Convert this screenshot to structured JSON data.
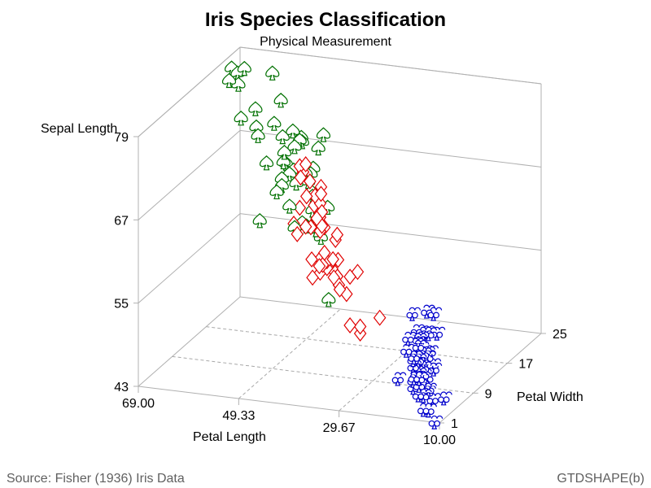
{
  "chart_data": {
    "type": "scatter3d",
    "title": "Iris Species Classification",
    "subtitle": "Physical Measurement",
    "x_axis": {
      "label": "Petal Length",
      "ticks": [
        "69.00",
        "49.33",
        "29.67",
        "10.00"
      ],
      "range": [
        10,
        69
      ]
    },
    "y_axis": {
      "label": "Petal Width",
      "ticks": [
        "1",
        "9",
        "17",
        "25"
      ],
      "range": [
        1,
        25
      ]
    },
    "z_axis": {
      "label": "Sepal Length",
      "ticks": [
        "43",
        "55",
        "67",
        "79"
      ],
      "range": [
        43,
        79
      ]
    },
    "footnote_left": "Source: Fisher (1936) Iris Data",
    "footnote_right": "GTDSHAPE(b)",
    "series": [
      {
        "symbol": "club",
        "color": "#0000cc",
        "points": [
          [
            14,
            2,
            51
          ],
          [
            14,
            2,
            49
          ],
          [
            13,
            2,
            47
          ],
          [
            15,
            2,
            46
          ],
          [
            14,
            2,
            50
          ],
          [
            17,
            4,
            54
          ],
          [
            14,
            3,
            46
          ],
          [
            15,
            2,
            50
          ],
          [
            14,
            2,
            44
          ],
          [
            15,
            1,
            49
          ],
          [
            15,
            2,
            54
          ],
          [
            16,
            2,
            48
          ],
          [
            14,
            1,
            48
          ],
          [
            11,
            1,
            43
          ],
          [
            12,
            2,
            58
          ],
          [
            15,
            4,
            57
          ],
          [
            13,
            4,
            54
          ],
          [
            14,
            3,
            51
          ],
          [
            17,
            3,
            57
          ],
          [
            15,
            3,
            51
          ],
          [
            17,
            2,
            54
          ],
          [
            15,
            4,
            51
          ],
          [
            10,
            2,
            46
          ],
          [
            17,
            5,
            51
          ],
          [
            19,
            2,
            48
          ],
          [
            16,
            2,
            50
          ],
          [
            16,
            4,
            50
          ],
          [
            15,
            2,
            52
          ],
          [
            14,
            2,
            52
          ],
          [
            16,
            2,
            47
          ],
          [
            16,
            2,
            48
          ],
          [
            15,
            4,
            54
          ],
          [
            15,
            1,
            52
          ],
          [
            14,
            2,
            55
          ],
          [
            15,
            2,
            49
          ],
          [
            12,
            2,
            50
          ],
          [
            13,
            2,
            55
          ],
          [
            14,
            1,
            49
          ],
          [
            13,
            2,
            44
          ],
          [
            15,
            2,
            51
          ],
          [
            13,
            3,
            50
          ],
          [
            13,
            3,
            45
          ],
          [
            13,
            2,
            44
          ],
          [
            16,
            6,
            50
          ],
          [
            19,
            4,
            51
          ],
          [
            14,
            3,
            48
          ],
          [
            16,
            2,
            51
          ],
          [
            14,
            2,
            46
          ],
          [
            15,
            2,
            53
          ],
          [
            14,
            2,
            50
          ]
        ]
      },
      {
        "symbol": "diamond",
        "color": "#e00000",
        "points": [
          [
            47,
            14,
            70
          ],
          [
            45,
            15,
            64
          ],
          [
            49,
            15,
            69
          ],
          [
            40,
            13,
            55
          ],
          [
            46,
            15,
            65
          ],
          [
            45,
            13,
            57
          ],
          [
            47,
            16,
            63
          ],
          [
            33,
            10,
            49
          ],
          [
            46,
            13,
            66
          ],
          [
            39,
            14,
            52
          ],
          [
            35,
            10,
            50
          ],
          [
            42,
            15,
            59
          ],
          [
            40,
            10,
            60
          ],
          [
            47,
            14,
            61
          ],
          [
            36,
            13,
            56
          ],
          [
            44,
            14,
            67
          ],
          [
            45,
            15,
            56
          ],
          [
            41,
            10,
            58
          ],
          [
            45,
            15,
            62
          ],
          [
            39,
            11,
            56
          ],
          [
            48,
            18,
            59
          ],
          [
            40,
            13,
            61
          ],
          [
            49,
            15,
            63
          ],
          [
            47,
            12,
            61
          ],
          [
            43,
            13,
            64
          ],
          [
            44,
            14,
            66
          ],
          [
            48,
            14,
            68
          ],
          [
            50,
            17,
            67
          ],
          [
            45,
            15,
            60
          ],
          [
            35,
            10,
            57
          ],
          [
            38,
            11,
            55
          ],
          [
            37,
            10,
            55
          ],
          [
            39,
            12,
            58
          ],
          [
            51,
            16,
            60
          ],
          [
            45,
            15,
            54
          ],
          [
            45,
            16,
            60
          ],
          [
            47,
            15,
            67
          ],
          [
            44,
            13,
            63
          ],
          [
            41,
            13,
            56
          ],
          [
            40,
            13,
            55
          ],
          [
            44,
            12,
            55
          ],
          [
            46,
            14,
            61
          ],
          [
            40,
            12,
            58
          ],
          [
            33,
            10,
            50
          ],
          [
            42,
            13,
            56
          ],
          [
            42,
            12,
            57
          ],
          [
            42,
            13,
            57
          ],
          [
            43,
            13,
            62
          ],
          [
            30,
            11,
            51
          ],
          [
            41,
            13,
            57
          ]
        ]
      },
      {
        "symbol": "spade",
        "color": "#007000",
        "points": [
          [
            60,
            25,
            63
          ],
          [
            51,
            19,
            58
          ],
          [
            59,
            21,
            71
          ],
          [
            56,
            18,
            63
          ],
          [
            58,
            22,
            65
          ],
          [
            66,
            21,
            76
          ],
          [
            45,
            17,
            49
          ],
          [
            63,
            18,
            73
          ],
          [
            58,
            18,
            67
          ],
          [
            61,
            25,
            72
          ],
          [
            51,
            20,
            65
          ],
          [
            53,
            19,
            64
          ],
          [
            55,
            21,
            68
          ],
          [
            50,
            20,
            57
          ],
          [
            51,
            24,
            58
          ],
          [
            53,
            23,
            64
          ],
          [
            55,
            18,
            65
          ],
          [
            67,
            22,
            77
          ],
          [
            69,
            23,
            77
          ],
          [
            50,
            15,
            60
          ],
          [
            57,
            23,
            69
          ],
          [
            49,
            20,
            56
          ],
          [
            67,
            20,
            77
          ],
          [
            49,
            18,
            63
          ],
          [
            57,
            21,
            67
          ],
          [
            60,
            18,
            72
          ],
          [
            48,
            18,
            62
          ],
          [
            49,
            18,
            61
          ],
          [
            56,
            21,
            64
          ],
          [
            58,
            16,
            72
          ],
          [
            61,
            19,
            74
          ],
          [
            64,
            20,
            79
          ],
          [
            56,
            22,
            64
          ],
          [
            51,
            15,
            63
          ],
          [
            56,
            14,
            61
          ],
          [
            61,
            23,
            77
          ],
          [
            56,
            24,
            63
          ],
          [
            55,
            18,
            64
          ],
          [
            48,
            18,
            60
          ],
          [
            54,
            21,
            69
          ],
          [
            56,
            24,
            67
          ],
          [
            51,
            23,
            69
          ],
          [
            51,
            19,
            58
          ],
          [
            59,
            23,
            68
          ],
          [
            57,
            25,
            67
          ],
          [
            52,
            23,
            67
          ],
          [
            50,
            19,
            63
          ],
          [
            52,
            20,
            65
          ],
          [
            54,
            23,
            62
          ],
          [
            51,
            18,
            59
          ]
        ]
      }
    ]
  }
}
